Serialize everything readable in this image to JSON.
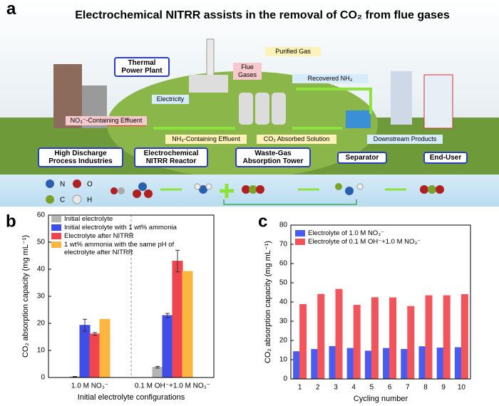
{
  "diagram": {
    "panel_label": "a",
    "title": "Electrochemical NITRR assists in the removal of CO₂ from flue gases",
    "labels": [
      "Thermal Power Plant",
      "Flue Gases",
      "Purified Gas",
      "Electricity",
      "Recovered NH₃",
      "NO₃⁻-Containing Effluent",
      "NH₃-Containing Effluent",
      "CO₂ Absorbed Solution",
      "Downstream Products",
      "High Discharge Process Industries",
      "Electrochemical NITRR Reactor",
      "Waste-Gas Absorption Tower",
      "Separator",
      "End-User"
    ],
    "atoms": [
      "N",
      "O",
      "C",
      "H"
    ]
  },
  "chart_data": [
    {
      "type": "bar",
      "panel_label": "b",
      "ylabel": "CO₂ absorption capacity (mg mL⁻¹)",
      "xlabel": "Initial electrolyte configurations",
      "categories": [
        "1.0 M NO₃⁻",
        "0.1 M OH⁻+1.0 M NO₃⁻"
      ],
      "series": [
        {
          "name": "Initial electrolyte",
          "color": "#b5b5b5",
          "values": [
            0.3,
            3.8
          ],
          "errors": [
            0.1,
            0.3
          ]
        },
        {
          "name": "Initial electrolyte with 1 wt% ammonia",
          "color": "#3f4ee8",
          "values": [
            19.3,
            22.9
          ],
          "errors": [
            2.2,
            0.8
          ]
        },
        {
          "name": "Electrolyte after NITRR",
          "color": "#f0454e",
          "values": [
            16.1,
            43.0
          ],
          "errors": [
            0.5,
            4.0
          ]
        },
        {
          "name": "1 wt% ammonia with the same pH of electrolyte after NITRR",
          "color": "#fbb640",
          "values": [
            21.5,
            39.2
          ]
        }
      ],
      "ylim": [
        0,
        60
      ],
      "yticks": [
        0,
        10,
        20,
        30,
        40,
        50,
        60
      ]
    },
    {
      "type": "bar",
      "panel_label": "c",
      "ylabel": "CO₂ absorption capacity (mg mL⁻¹)",
      "xlabel": "Cycling number",
      "categories": [
        "1",
        "2",
        "3",
        "4",
        "5",
        "6",
        "7",
        "8",
        "9",
        "10"
      ],
      "series": [
        {
          "name": "Electrolyte of 1.0 M NO₃⁻",
          "color": "#4a5cf0",
          "values": [
            14.2,
            15.4,
            16.9,
            15.9,
            14.5,
            15.9,
            15.4,
            16.8,
            16.1,
            16.3
          ]
        },
        {
          "name": "Electrolyte of 0.1 M OH⁻+1.0 M NO₃⁻",
          "color": "#f2545c",
          "values": [
            38.7,
            44.0,
            46.6,
            38.3,
            42.3,
            42.2,
            37.7,
            43.3,
            43.3,
            43.9
          ]
        }
      ],
      "ylim": [
        0,
        80
      ],
      "yticks": [
        0,
        10,
        20,
        30,
        40,
        50,
        60,
        70,
        80
      ]
    }
  ]
}
